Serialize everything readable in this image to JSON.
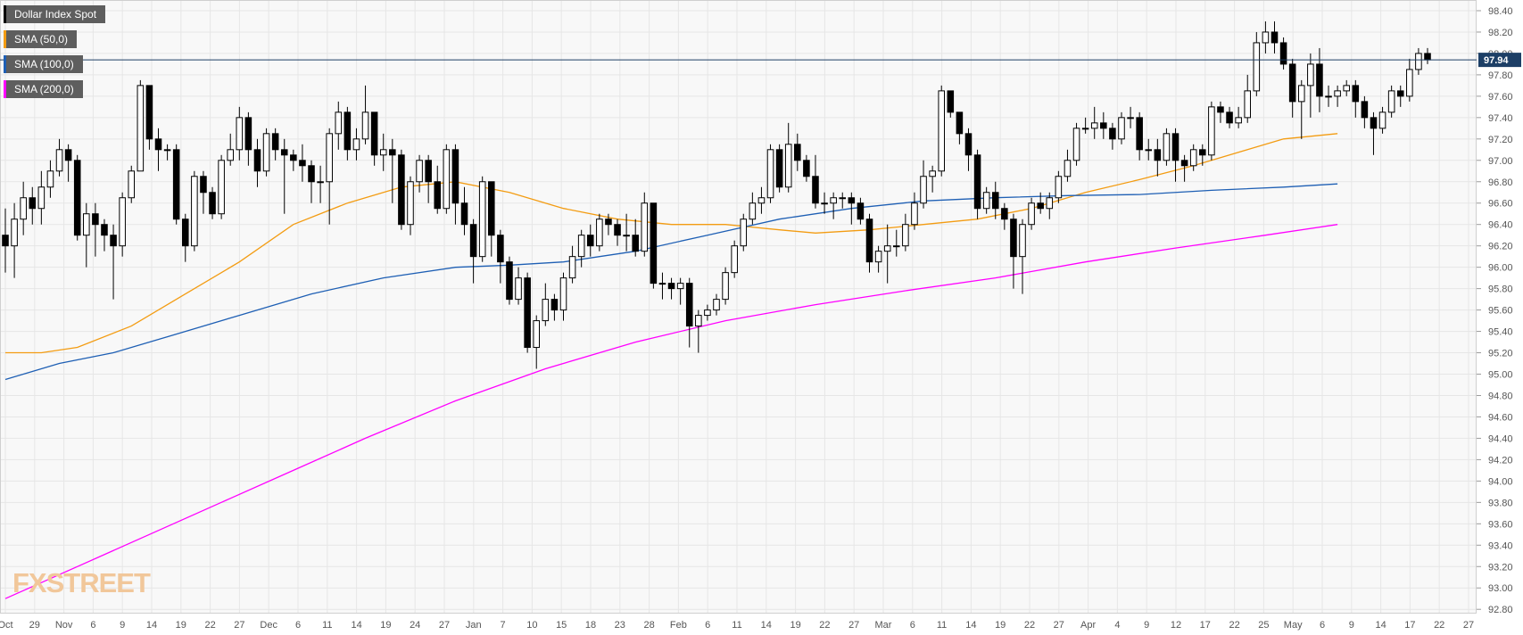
{
  "legend": [
    {
      "label": "Dollar Index Spot",
      "color": "#000000"
    },
    {
      "label": "SMA (50,0)",
      "color": "#f39c12"
    },
    {
      "label": "SMA (100,0)",
      "color": "#1e5fb4"
    },
    {
      "label": "SMA (200,0)",
      "color": "#ff00ff"
    }
  ],
  "logo": "FXSTREET",
  "chart_data": {
    "type": "candlestick",
    "title": "Dollar Index Spot",
    "ylim": [
      92.76,
      98.5
    ],
    "y_ticks": [
      "98.40",
      "98.20",
      "98.00",
      "97.80",
      "97.60",
      "97.40",
      "97.20",
      "97.00",
      "96.80",
      "96.60",
      "96.40",
      "96.20",
      "96.00",
      "95.80",
      "95.60",
      "95.40",
      "95.20",
      "95.00",
      "94.80",
      "94.60",
      "94.40",
      "94.20",
      "94.00",
      "93.80",
      "93.60",
      "93.40",
      "93.20",
      "93.00",
      "92.80"
    ],
    "x_ticks": [
      "Oct",
      "29",
      "Nov",
      "6",
      "9",
      "14",
      "19",
      "22",
      "27",
      "Dec",
      "6",
      "11",
      "14",
      "19",
      "24",
      "27",
      "Jan",
      "7",
      "10",
      "15",
      "18",
      "23",
      "28",
      "Feb",
      "6",
      "11",
      "14",
      "19",
      "22",
      "27",
      "Mar",
      "6",
      "11",
      "14",
      "19",
      "22",
      "27",
      "Apr",
      "4",
      "9",
      "12",
      "17",
      "22",
      "25",
      "May",
      "6",
      "9",
      "14",
      "17",
      "22",
      "27"
    ],
    "last_price": "97.94",
    "last_price_color": "#1d3f66",
    "grid": true,
    "candles": [
      [
        96.3,
        96.2,
        96.55,
        95.95
      ],
      [
        96.2,
        96.45,
        96.6,
        95.9
      ],
      [
        96.45,
        96.65,
        96.8,
        96.3
      ],
      [
        96.65,
        96.55,
        96.75,
        96.4
      ],
      [
        96.55,
        96.75,
        96.9,
        96.4
      ],
      [
        96.75,
        96.9,
        97.0,
        96.65
      ],
      [
        96.9,
        97.1,
        97.2,
        96.85
      ],
      [
        97.1,
        97.0,
        97.15,
        96.8
      ],
      [
        97.0,
        96.3,
        97.05,
        96.25
      ],
      [
        96.3,
        96.5,
        96.6,
        96.0
      ],
      [
        96.5,
        96.4,
        96.6,
        96.1
      ],
      [
        96.4,
        96.3,
        96.45,
        96.15
      ],
      [
        96.3,
        96.2,
        96.4,
        95.7
      ],
      [
        96.2,
        96.65,
        96.7,
        96.1
      ],
      [
        96.65,
        96.9,
        96.95,
        96.6
      ],
      [
        96.9,
        97.7,
        97.75,
        96.9
      ],
      [
        97.7,
        97.2,
        97.7,
        97.1
      ],
      [
        97.2,
        97.1,
        97.3,
        96.9
      ],
      [
        97.1,
        97.1,
        97.15,
        97.0
      ],
      [
        97.1,
        96.45,
        97.15,
        96.4
      ],
      [
        96.45,
        96.2,
        96.5,
        96.05
      ],
      [
        96.2,
        96.85,
        96.9,
        96.15
      ],
      [
        96.85,
        96.7,
        96.9,
        96.5
      ],
      [
        96.7,
        96.5,
        96.75,
        96.45
      ],
      [
        96.5,
        97.0,
        97.05,
        96.45
      ],
      [
        97.0,
        97.1,
        97.25,
        96.95
      ],
      [
        97.1,
        97.4,
        97.5,
        97.0
      ],
      [
        97.4,
        97.1,
        97.45,
        96.95
      ],
      [
        97.1,
        96.9,
        97.2,
        96.75
      ],
      [
        96.9,
        97.25,
        97.3,
        96.85
      ],
      [
        97.25,
        97.1,
        97.3,
        97.0
      ],
      [
        97.1,
        97.05,
        97.2,
        96.5
      ],
      [
        97.05,
        97.0,
        97.1,
        96.9
      ],
      [
        97.0,
        96.95,
        97.15,
        96.8
      ],
      [
        96.95,
        96.8,
        97.0,
        96.6
      ],
      [
        96.8,
        96.8,
        96.95,
        96.6
      ],
      [
        96.8,
        97.25,
        97.3,
        96.4
      ],
      [
        97.25,
        97.45,
        97.55,
        97.1
      ],
      [
        97.45,
        97.1,
        97.5,
        97.0
      ],
      [
        97.1,
        97.2,
        97.3,
        97.0
      ],
      [
        97.2,
        97.45,
        97.7,
        97.15
      ],
      [
        97.45,
        97.05,
        97.45,
        96.95
      ],
      [
        97.05,
        97.1,
        97.25,
        96.9
      ],
      [
        97.1,
        97.05,
        97.2,
        96.6
      ],
      [
        97.05,
        96.4,
        97.1,
        96.35
      ],
      [
        96.4,
        96.8,
        96.85,
        96.3
      ],
      [
        96.8,
        97.0,
        97.05,
        96.7
      ],
      [
        97.0,
        96.8,
        97.05,
        96.6
      ],
      [
        96.8,
        96.55,
        96.95,
        96.5
      ],
      [
        96.55,
        97.1,
        97.15,
        96.5
      ],
      [
        97.1,
        96.6,
        97.15,
        96.4
      ],
      [
        96.6,
        96.4,
        96.75,
        96.3
      ],
      [
        96.4,
        96.1,
        96.45,
        95.85
      ],
      [
        96.1,
        96.8,
        96.85,
        96.05
      ],
      [
        96.8,
        96.3,
        96.8,
        96.1
      ],
      [
        96.3,
        96.05,
        96.35,
        95.85
      ],
      [
        96.05,
        95.7,
        96.1,
        95.65
      ],
      [
        95.7,
        95.9,
        96.0,
        95.65
      ],
      [
        95.9,
        95.25,
        95.95,
        95.2
      ],
      [
        95.25,
        95.5,
        95.55,
        95.05
      ],
      [
        95.5,
        95.7,
        95.85,
        95.45
      ],
      [
        95.7,
        95.6,
        95.75,
        95.5
      ],
      [
        95.6,
        95.9,
        95.95,
        95.5
      ],
      [
        95.9,
        96.1,
        96.2,
        95.85
      ],
      [
        96.1,
        96.3,
        96.35,
        96.0
      ],
      [
        96.3,
        96.2,
        96.4,
        96.1
      ],
      [
        96.2,
        96.45,
        96.5,
        96.15
      ],
      [
        96.45,
        96.4,
        96.5,
        96.3
      ],
      [
        96.4,
        96.3,
        96.45,
        96.2
      ],
      [
        96.3,
        96.3,
        96.5,
        96.15
      ],
      [
        96.3,
        96.15,
        96.45,
        96.1
      ],
      [
        96.15,
        96.6,
        96.7,
        96.1
      ],
      [
        96.6,
        95.85,
        96.6,
        95.8
      ],
      [
        95.85,
        95.85,
        95.95,
        95.7
      ],
      [
        95.85,
        95.8,
        95.9,
        95.7
      ],
      [
        95.8,
        95.85,
        95.9,
        95.65
      ],
      [
        95.85,
        95.45,
        95.9,
        95.25
      ],
      [
        95.45,
        95.55,
        95.6,
        95.2
      ],
      [
        95.55,
        95.6,
        95.65,
        95.5
      ],
      [
        95.6,
        95.7,
        95.75,
        95.55
      ],
      [
        95.7,
        95.95,
        96.0,
        95.65
      ],
      [
        95.95,
        96.2,
        96.25,
        95.9
      ],
      [
        96.2,
        96.45,
        96.5,
        96.15
      ],
      [
        96.45,
        96.6,
        96.7,
        96.4
      ],
      [
        96.6,
        96.65,
        96.75,
        96.5
      ],
      [
        96.65,
        97.1,
        97.15,
        96.6
      ],
      [
        97.1,
        96.75,
        97.15,
        96.7
      ],
      [
        96.75,
        97.15,
        97.35,
        96.7
      ],
      [
        97.15,
        97.0,
        97.25,
        96.9
      ],
      [
        97.0,
        96.85,
        97.05,
        96.8
      ],
      [
        96.85,
        96.6,
        97.05,
        96.55
      ],
      [
        96.6,
        96.6,
        96.7,
        96.5
      ],
      [
        96.6,
        96.65,
        96.7,
        96.45
      ],
      [
        96.65,
        96.65,
        96.7,
        96.55
      ],
      [
        96.65,
        96.6,
        96.7,
        96.4
      ],
      [
        96.6,
        96.45,
        96.65,
        96.4
      ],
      [
        96.45,
        96.05,
        96.5,
        95.95
      ],
      [
        96.05,
        96.15,
        96.2,
        95.95
      ],
      [
        96.15,
        96.2,
        96.4,
        95.85
      ],
      [
        96.2,
        96.2,
        96.35,
        96.1
      ],
      [
        96.2,
        96.4,
        96.5,
        96.15
      ],
      [
        96.4,
        96.6,
        96.7,
        96.35
      ],
      [
        96.6,
        96.85,
        97.0,
        96.55
      ],
      [
        96.85,
        96.9,
        96.95,
        96.7
      ],
      [
        96.9,
        97.65,
        97.7,
        96.85
      ],
      [
        97.65,
        97.45,
        97.65,
        97.4
      ],
      [
        97.45,
        97.25,
        97.45,
        97.15
      ],
      [
        97.25,
        97.05,
        97.3,
        96.9
      ],
      [
        97.05,
        96.55,
        97.1,
        96.45
      ],
      [
        96.55,
        96.7,
        96.75,
        96.5
      ],
      [
        96.7,
        96.55,
        96.8,
        96.45
      ],
      [
        96.55,
        96.45,
        96.6,
        96.35
      ],
      [
        96.45,
        96.1,
        96.5,
        95.8
      ],
      [
        96.1,
        96.4,
        96.45,
        95.75
      ],
      [
        96.4,
        96.6,
        96.65,
        96.35
      ],
      [
        96.6,
        96.55,
        96.7,
        96.5
      ],
      [
        96.55,
        96.65,
        96.7,
        96.45
      ],
      [
        96.65,
        96.85,
        96.9,
        96.6
      ],
      [
        96.85,
        97.0,
        97.1,
        96.8
      ],
      [
        97.0,
        97.3,
        97.35,
        96.95
      ],
      [
        97.3,
        97.3,
        97.4,
        97.25
      ],
      [
        97.3,
        97.35,
        97.5,
        97.2
      ],
      [
        97.35,
        97.3,
        97.45,
        97.2
      ],
      [
        97.3,
        97.2,
        97.35,
        97.1
      ],
      [
        97.2,
        97.4,
        97.45,
        97.15
      ],
      [
        97.4,
        97.4,
        97.5,
        97.3
      ],
      [
        97.4,
        97.1,
        97.45,
        97.0
      ],
      [
        97.1,
        97.1,
        97.2,
        97.0
      ],
      [
        97.1,
        97.0,
        97.2,
        96.85
      ],
      [
        97.0,
        97.25,
        97.3,
        96.95
      ],
      [
        97.25,
        97.0,
        97.3,
        96.8
      ],
      [
        97.0,
        96.95,
        97.05,
        96.8
      ],
      [
        96.95,
        97.1,
        97.15,
        96.9
      ],
      [
        97.1,
        97.05,
        97.15,
        96.95
      ],
      [
        97.05,
        97.5,
        97.55,
        97.0
      ],
      [
        97.5,
        97.45,
        97.55,
        97.35
      ],
      [
        97.45,
        97.35,
        97.5,
        97.3
      ],
      [
        97.35,
        97.4,
        97.5,
        97.3
      ],
      [
        97.4,
        97.65,
        97.8,
        97.35
      ],
      [
        97.65,
        98.1,
        98.2,
        97.6
      ],
      [
        98.1,
        98.2,
        98.3,
        98.0
      ],
      [
        98.2,
        98.1,
        98.3,
        98.0
      ],
      [
        98.1,
        97.9,
        98.15,
        97.85
      ],
      [
        97.9,
        97.55,
        97.95,
        97.4
      ],
      [
        97.55,
        97.7,
        97.75,
        97.2
      ],
      [
        97.7,
        97.9,
        98.0,
        97.4
      ],
      [
        97.9,
        97.6,
        98.05,
        97.45
      ],
      [
        97.6,
        97.6,
        97.7,
        97.5
      ],
      [
        97.6,
        97.65,
        97.7,
        97.5
      ],
      [
        97.65,
        97.7,
        97.75,
        97.6
      ],
      [
        97.7,
        97.55,
        97.75,
        97.4
      ],
      [
        97.55,
        97.4,
        97.6,
        97.3
      ],
      [
        97.4,
        97.3,
        97.45,
        97.05
      ],
      [
        97.3,
        97.45,
        97.5,
        97.25
      ],
      [
        97.45,
        97.65,
        97.7,
        97.4
      ],
      [
        97.65,
        97.6,
        97.7,
        97.5
      ],
      [
        97.6,
        97.85,
        97.95,
        97.55
      ],
      [
        97.85,
        98.0,
        98.05,
        97.8
      ],
      [
        98.0,
        97.94,
        98.05,
        97.9
      ]
    ],
    "series": [
      {
        "name": "SMA (50,0)",
        "color": "#f39c12",
        "values": [
          [
            0,
            95.2
          ],
          [
            4,
            95.2
          ],
          [
            8,
            95.25
          ],
          [
            14,
            95.45
          ],
          [
            20,
            95.75
          ],
          [
            26,
            96.05
          ],
          [
            32,
            96.4
          ],
          [
            38,
            96.6
          ],
          [
            44,
            96.75
          ],
          [
            50,
            96.8
          ],
          [
            56,
            96.7
          ],
          [
            62,
            96.55
          ],
          [
            68,
            96.45
          ],
          [
            74,
            96.4
          ],
          [
            80,
            96.4
          ],
          [
            86,
            96.35
          ],
          [
            90,
            96.32
          ],
          [
            96,
            96.35
          ],
          [
            102,
            96.4
          ],
          [
            108,
            96.45
          ],
          [
            114,
            96.55
          ],
          [
            120,
            96.7
          ],
          [
            126,
            96.82
          ],
          [
            132,
            96.95
          ],
          [
            138,
            97.1
          ],
          [
            142,
            97.2
          ],
          [
            148,
            97.25
          ]
        ]
      },
      {
        "name": "SMA (100,0)",
        "color": "#1e5fb4",
        "values": [
          [
            0,
            94.95
          ],
          [
            6,
            95.1
          ],
          [
            12,
            95.2
          ],
          [
            18,
            95.35
          ],
          [
            26,
            95.55
          ],
          [
            34,
            95.75
          ],
          [
            42,
            95.9
          ],
          [
            50,
            96.0
          ],
          [
            56,
            96.02
          ],
          [
            62,
            96.05
          ],
          [
            70,
            96.15
          ],
          [
            78,
            96.3
          ],
          [
            86,
            96.45
          ],
          [
            94,
            96.55
          ],
          [
            102,
            96.62
          ],
          [
            110,
            96.65
          ],
          [
            118,
            96.67
          ],
          [
            126,
            96.68
          ],
          [
            134,
            96.72
          ],
          [
            142,
            96.75
          ],
          [
            148,
            96.78
          ]
        ]
      },
      {
        "name": "SMA (200,0)",
        "color": "#ff00ff",
        "values": [
          [
            0,
            92.9
          ],
          [
            8,
            93.2
          ],
          [
            16,
            93.5
          ],
          [
            24,
            93.8
          ],
          [
            32,
            94.1
          ],
          [
            40,
            94.4
          ],
          [
            50,
            94.75
          ],
          [
            60,
            95.05
          ],
          [
            70,
            95.3
          ],
          [
            80,
            95.5
          ],
          [
            90,
            95.65
          ],
          [
            100,
            95.78
          ],
          [
            110,
            95.9
          ],
          [
            120,
            96.05
          ],
          [
            130,
            96.18
          ],
          [
            140,
            96.3
          ],
          [
            148,
            96.4
          ]
        ]
      }
    ]
  }
}
